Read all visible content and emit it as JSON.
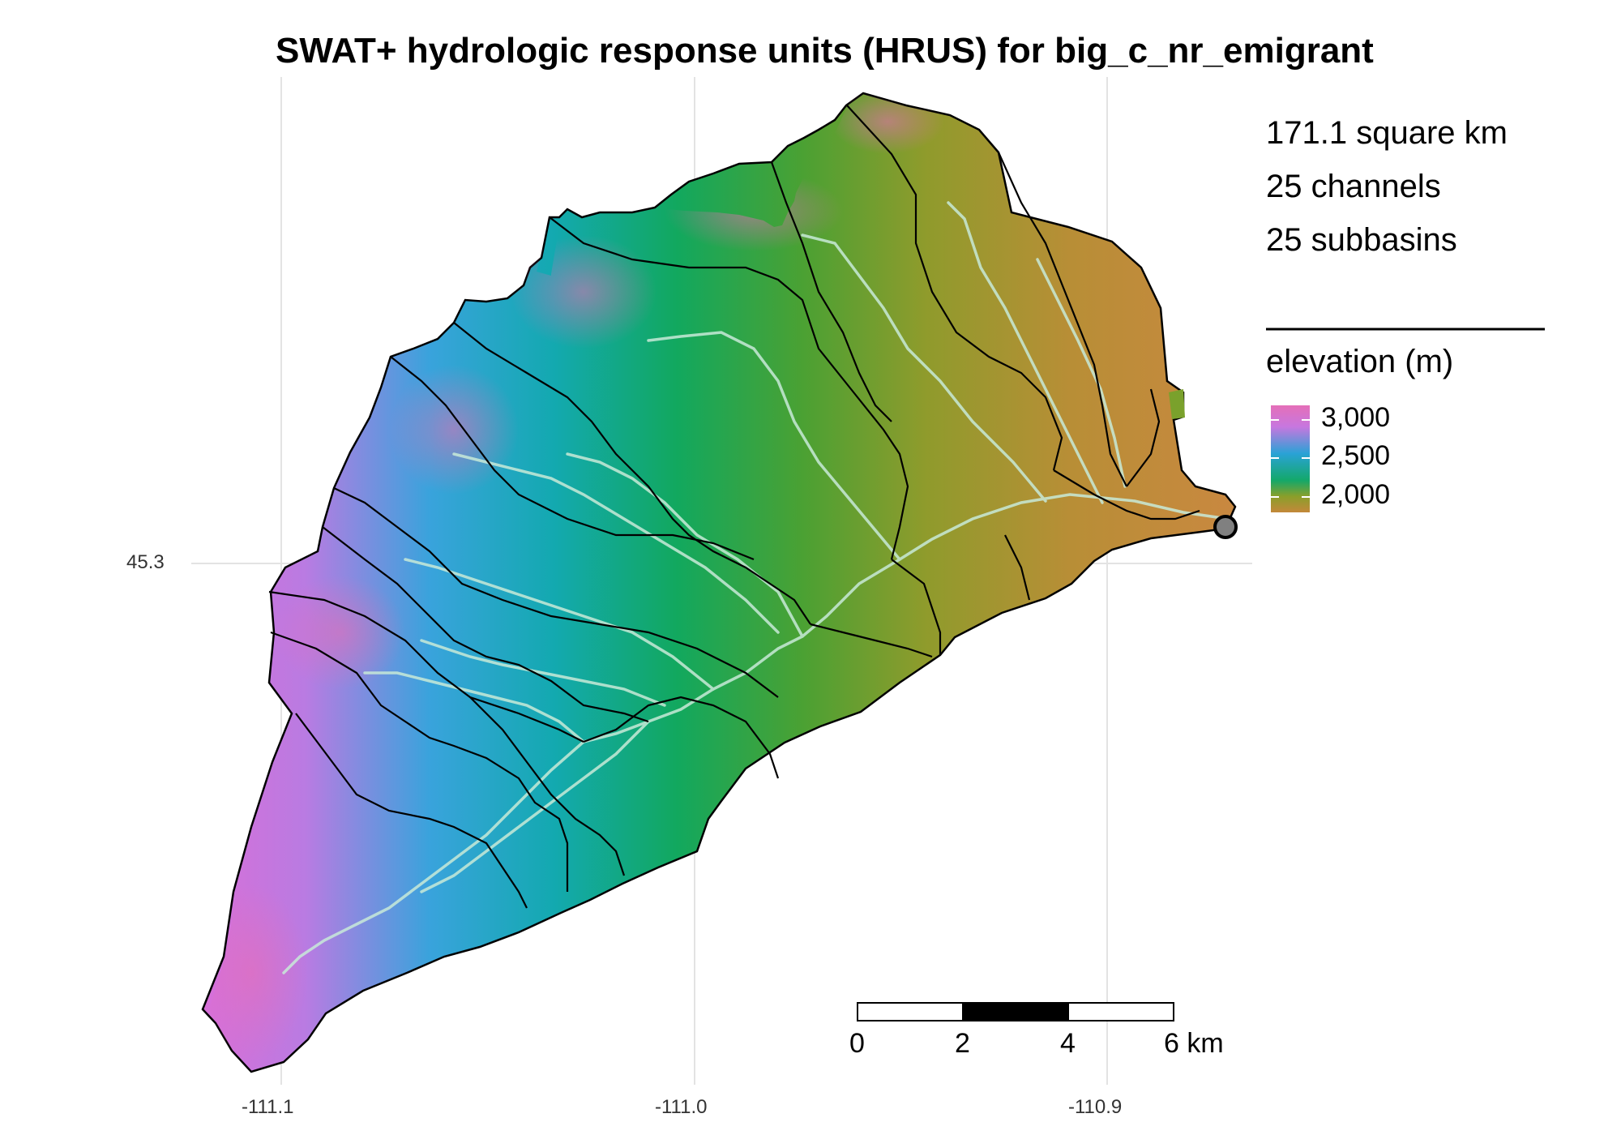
{
  "title": "SWAT+ hydrologic response units (HRUS) for big_c_nr_emigrant",
  "stats": {
    "area": "171.1 square km",
    "channels": "25 channels",
    "subbasins": "25 subbasins"
  },
  "legend": {
    "title": "elevation (m)",
    "labels": [
      "3,000",
      "2,500",
      "2,000"
    ],
    "colors": [
      "#e56fb8",
      "#c777df",
      "#2aa2d6",
      "#14a86a",
      "#8a9f2a",
      "#c4883a"
    ]
  },
  "axes": {
    "x_ticks": [
      "-111.1",
      "-111.0",
      "-110.9"
    ],
    "y_ticks": [
      "45.3"
    ]
  },
  "scale_bar": {
    "labels": [
      "0",
      "2",
      "4",
      "6 km"
    ]
  },
  "colors": {
    "boundary": "#000000",
    "channel": "#c8ead8",
    "gridline": "#e3e3e3",
    "outlet": "#808080"
  },
  "icons": [
    "outlet-point-icon"
  ]
}
